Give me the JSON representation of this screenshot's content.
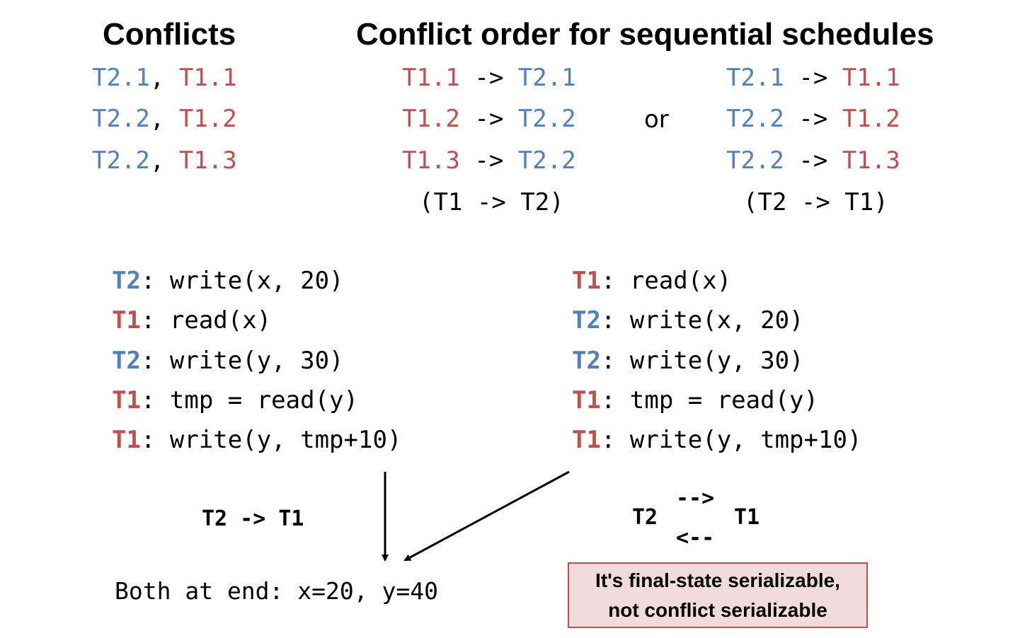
{
  "titles": {
    "conflicts": "Conflicts",
    "order": "Conflict order for sequential schedules"
  },
  "conflicts": [
    {
      "a": "T2.1",
      "sep": ", ",
      "b": "T1.1"
    },
    {
      "a": "T2.2",
      "sep": ", ",
      "b": "T1.2"
    },
    {
      "a": "T2.2",
      "sep": ", ",
      "b": "T1.3"
    }
  ],
  "order_t1_first": [
    {
      "a": "T1.1",
      "arrow": " -> ",
      "b": "T2.1"
    },
    {
      "a": "T1.2",
      "arrow": " -> ",
      "b": "T2.2"
    },
    {
      "a": "T1.3",
      "arrow": " -> ",
      "b": "T2.2"
    }
  ],
  "order_t1_first_summary": "(T1 -> T2)",
  "or_label": "or",
  "order_t2_first": [
    {
      "a": "T2.1",
      "arrow": " -> ",
      "b": "T1.1"
    },
    {
      "a": "T2.2",
      "arrow": " -> ",
      "b": "T1.2"
    },
    {
      "a": "T2.2",
      "arrow": " -> ",
      "b": "T1.3"
    }
  ],
  "order_t2_first_summary": "(T2 -> T1)",
  "schedule_left": [
    {
      "txn": "T2",
      "op": ": write(x, 20)"
    },
    {
      "txn": "T1",
      "op": ": read(x)"
    },
    {
      "txn": "T2",
      "op": ": write(y, 30)"
    },
    {
      "txn": "T1",
      "op": ": tmp = read(y)"
    },
    {
      "txn": "T1",
      "op": ": write(y, tmp+10)"
    }
  ],
  "schedule_right": [
    {
      "txn": "T1",
      "op": ": read(x)"
    },
    {
      "txn": "T2",
      "op": ": write(x, 20)"
    },
    {
      "txn": "T2",
      "op": ": write(y, 30)"
    },
    {
      "txn": "T1",
      "op": ": tmp = read(y)"
    },
    {
      "txn": "T1",
      "op": ": write(y, tmp+10)"
    }
  ],
  "left_order": "T2 -> T1",
  "right_cycle": {
    "left": "T2",
    "right": "T1",
    "top_arrow": "-->",
    "bottom_arrow": "<--"
  },
  "end_state": "Both at end: x=20, y=40",
  "note": {
    "line1": "It's final-state serializable,",
    "line2": "not conflict serializable"
  },
  "colors": {
    "t1": "#c0504d",
    "t2": "#4f81bd",
    "note_bg": "#f2dcdb",
    "note_border": "#c0504d"
  }
}
